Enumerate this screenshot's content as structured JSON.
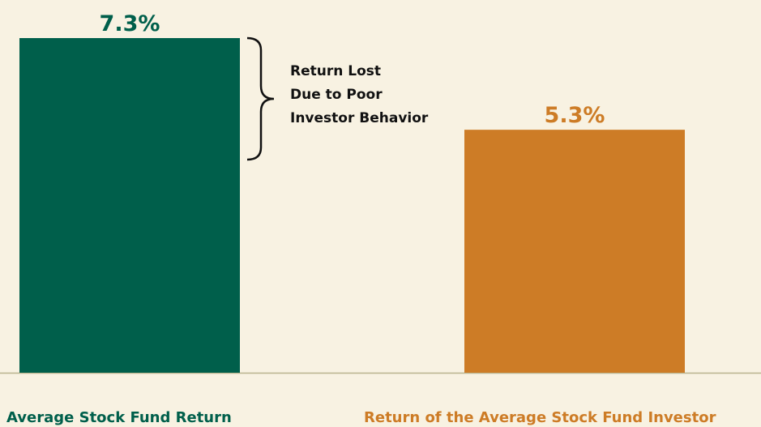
{
  "chart_data": {
    "type": "bar",
    "categories": [
      "Average Stock Fund Return",
      "Return of the Average Stock Fund Investor"
    ],
    "values": [
      7.3,
      5.3
    ],
    "value_labels": [
      "7.3%",
      "5.3%"
    ],
    "colors": [
      "#005f4b",
      "#cd7c26"
    ],
    "annotation": [
      "Return Lost",
      "Due to Poor",
      "Investor Behavior"
    ]
  }
}
